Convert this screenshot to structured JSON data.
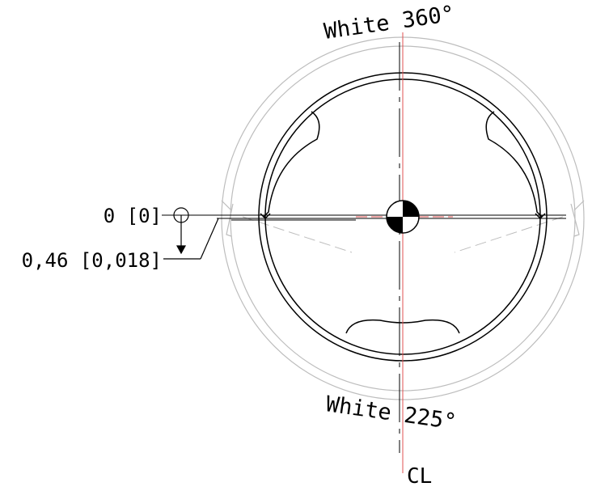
{
  "labels": {
    "top": "White 360°",
    "bottom": "White 225°",
    "centerline": "CL",
    "datum_zero": "0 [0]",
    "offset": "0,46 [0,018]"
  },
  "colors": {
    "line": "#000000",
    "centerline": "#e05050",
    "ghost": "#bdbdbd",
    "background": "#ffffff"
  }
}
